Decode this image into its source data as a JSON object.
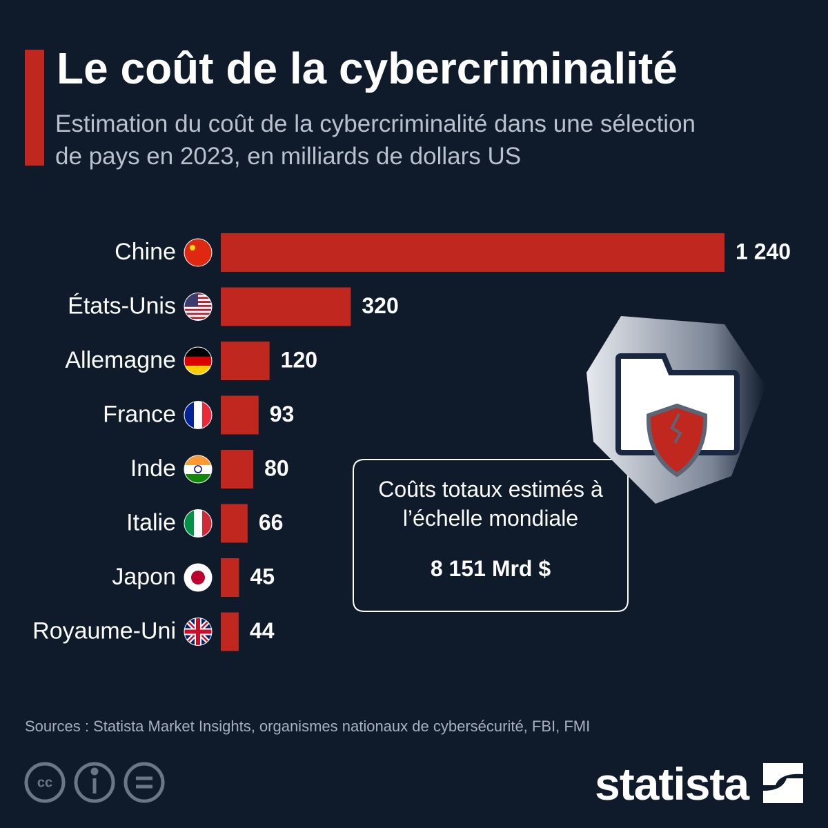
{
  "chart_data": {
    "type": "bar",
    "orientation": "horizontal",
    "title": "Le coût de la cybercriminalité",
    "subtitle": "Estimation du coût de la cybercriminalité dans une sélection de pays en 2023, en milliards de dollars US",
    "categories": [
      "Chine",
      "États-Unis",
      "Allemagne",
      "France",
      "Inde",
      "Italie",
      "Japon",
      "Royaume-Uni"
    ],
    "values": [
      1240,
      320,
      120,
      93,
      80,
      66,
      45,
      44
    ],
    "value_labels": [
      "1 240",
      "320",
      "120",
      "93",
      "80",
      "66",
      "45",
      "44"
    ],
    "color": "#c0271f",
    "annotation": {
      "text": "Coûts totaux estimés à l’échelle mondiale",
      "value_label": "8 151 Mrd $"
    },
    "source": "Sources : Statista Market Insights, organismes nationaux de cybersécurité, FBI, FMI",
    "brand": "statista"
  }
}
